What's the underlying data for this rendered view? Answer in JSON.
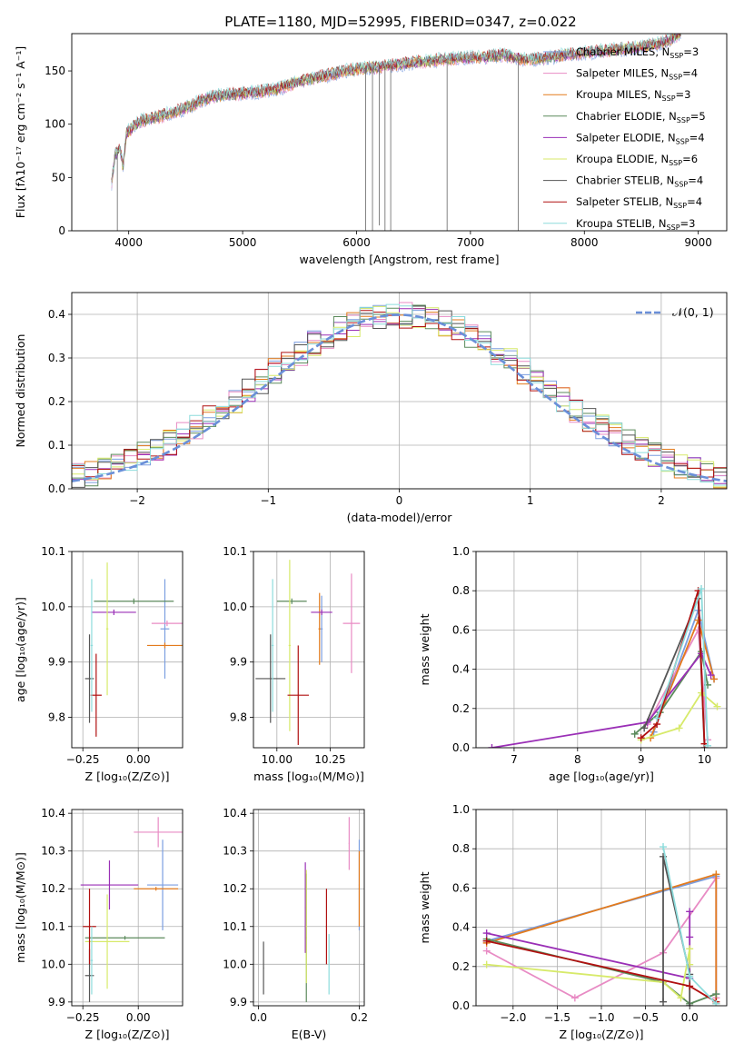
{
  "title": "PLATE=1180, MJD=52995, FIBERID=0347, z=0.022",
  "colors": {
    "Chabrier MILES": "#7b9ee0",
    "Salpeter MILES": "#e88bc4",
    "Kroupa MILES": "#e37b1d",
    "Chabrier ELODIE": "#5b8a5b",
    "Salpeter ELODIE": "#9a2fb6",
    "Kroupa ELODIE": "#d7ea6a",
    "Chabrier STELIB": "#555555",
    "Salpeter STELIB": "#b01010",
    "Kroupa STELIB": "#8ddcdc"
  },
  "chart_data": [
    {
      "id": "spectrum",
      "type": "line",
      "xlabel": "wavelength [Angstrom, rest frame]",
      "ylabel": "Flux [fλ10⁻¹⁷ erg cm⁻² s⁻¹ A⁻¹]",
      "xlim": [
        3500,
        9250
      ],
      "ylim": [
        0,
        185
      ],
      "xticks": [
        "4000",
        "5000",
        "6000",
        "7000",
        "8000",
        "9000"
      ],
      "yticks": [
        "0",
        "50",
        "100",
        "150"
      ],
      "grid": false,
      "legend_position": "right",
      "legend": [
        {
          "model": "Chabrier MILES",
          "label": "Chabrier MILES, N",
          "sub": "SSP",
          "n": "=3"
        },
        {
          "model": "Salpeter MILES",
          "label": "Salpeter MILES, N",
          "sub": "SSP",
          "n": "=4"
        },
        {
          "model": "Kroupa MILES",
          "label": "Kroupa MILES, N",
          "sub": "SSP",
          "n": "=3"
        },
        {
          "model": "Chabrier ELODIE",
          "label": "Chabrier ELODIE, N",
          "sub": "SSP",
          "n": "=5"
        },
        {
          "model": "Salpeter ELODIE",
          "label": "Salpeter ELODIE, N",
          "sub": "SSP",
          "n": "=4"
        },
        {
          "model": "Kroupa ELODIE",
          "label": "Kroupa ELODIE, N",
          "sub": "SSP",
          "n": "=6"
        },
        {
          "model": "Chabrier STELIB",
          "label": "Chabrier STELIB, N",
          "sub": "SSP",
          "n": "=4"
        },
        {
          "model": "Salpeter STELIB",
          "label": "Salpeter STELIB, N",
          "sub": "SSP",
          "n": "=4"
        },
        {
          "model": "Kroupa STELIB",
          "label": "Kroupa STELIB, N",
          "sub": "SSP",
          "n": "=3"
        }
      ],
      "continuum": [
        [
          3850,
          45
        ],
        [
          3880,
          70
        ],
        [
          3920,
          78
        ],
        [
          3950,
          60
        ],
        [
          3980,
          92
        ],
        [
          4100,
          103
        ],
        [
          4300,
          108
        ],
        [
          4500,
          115
        ],
        [
          4700,
          125
        ],
        [
          4900,
          128
        ],
        [
          5100,
          130
        ],
        [
          5300,
          133
        ],
        [
          5500,
          140
        ],
        [
          5700,
          145
        ],
        [
          5900,
          150
        ],
        [
          6100,
          153
        ],
        [
          6300,
          155
        ],
        [
          6500,
          158
        ],
        [
          6700,
          160
        ],
        [
          6900,
          162
        ],
        [
          7100,
          163
        ],
        [
          7300,
          165
        ],
        [
          7500,
          160
        ],
        [
          7700,
          163
        ],
        [
          7900,
          166
        ],
        [
          8100,
          168
        ],
        [
          8300,
          170
        ],
        [
          8500,
          172
        ],
        [
          8700,
          177
        ],
        [
          8850,
          185
        ]
      ],
      "drop_lines": [
        [
          3900,
          0
        ],
        [
          6080,
          0
        ],
        [
          6140,
          0
        ],
        [
          6200,
          5
        ],
        [
          6250,
          0
        ],
        [
          6300,
          0
        ],
        [
          6795,
          0
        ],
        [
          7420,
          0
        ]
      ]
    },
    {
      "id": "residuals",
      "type": "histogram",
      "xlabel": "(data-model)/error",
      "ylabel": "Normed distribution",
      "xlim": [
        -2.5,
        2.5
      ],
      "ylim": [
        0,
        0.45
      ],
      "xticks": [
        "−2",
        "−1",
        "0",
        "1",
        "2"
      ],
      "yticks": [
        "0.0",
        "0.1",
        "0.2",
        "0.3",
        "0.4"
      ],
      "grid": true,
      "legend": {
        "label": "𝒩(0, 1)",
        "position": "top-right"
      },
      "bin_width": 0.1
    },
    {
      "id": "age-vs-Z",
      "type": "errorbar",
      "xlabel": "Z [log₁₀(Z/Z⊙)]",
      "ylabel": "age  [log₁₀(age/yr)]",
      "xlim": [
        -0.3,
        0.2
      ],
      "ylim": [
        9.745,
        10.1
      ],
      "xticks": [
        "−0.25",
        "0.00"
      ],
      "xtick_values": [
        -0.25,
        0.0
      ],
      "yticks": [
        "9.8",
        "9.9",
        "10.0",
        "10.1"
      ],
      "ytick_values": [
        9.8,
        9.9,
        10.0,
        10.1
      ],
      "grid": true,
      "points": [
        {
          "model": "Chabrier MILES",
          "x": 0.12,
          "y": 9.96,
          "xerr": 0.02,
          "yerr": 0.09
        },
        {
          "model": "Salpeter MILES",
          "x": 0.13,
          "y": 9.97,
          "xerr": 0.07,
          "yerr": 0.005
        },
        {
          "model": "Kroupa MILES",
          "x": 0.12,
          "y": 9.93,
          "xerr": 0.08,
          "yerr": 0.005
        },
        {
          "model": "Chabrier ELODIE",
          "x": -0.02,
          "y": 10.01,
          "xerr": 0.18,
          "yerr": 0.005
        },
        {
          "model": "Salpeter ELODIE",
          "x": -0.11,
          "y": 9.99,
          "xerr": 0.1,
          "yerr": 0.005
        },
        {
          "model": "Kroupa ELODIE",
          "x": -0.14,
          "y": 9.96,
          "xerr": 0.005,
          "yerr": 0.12
        },
        {
          "model": "Chabrier STELIB",
          "x": -0.22,
          "y": 9.87,
          "xerr": 0.02,
          "yerr": 0.08
        },
        {
          "model": "Salpeter STELIB",
          "x": -0.19,
          "y": 9.84,
          "xerr": 0.025,
          "yerr": 0.075
        },
        {
          "model": "Kroupa STELIB",
          "x": -0.21,
          "y": 9.93,
          "xerr": 0.005,
          "yerr": 0.12
        }
      ]
    },
    {
      "id": "age-vs-mass",
      "type": "errorbar",
      "xlabel": "mass [log₁₀(M/M⊙)]",
      "ylabel": "",
      "xlim": [
        9.89,
        10.41
      ],
      "ylim": [
        9.745,
        10.1
      ],
      "xticks": [
        "10.00",
        "10.25"
      ],
      "xtick_values": [
        10.0,
        10.25
      ],
      "yticks": [
        "9.8",
        "9.9",
        "10.0",
        "10.1"
      ],
      "ytick_values": [
        9.8,
        9.9,
        10.0,
        10.1
      ],
      "grid": true,
      "points": [
        {
          "model": "Chabrier MILES",
          "x": 10.21,
          "y": 9.96,
          "xerr": 0.005,
          "yerr": 0.06
        },
        {
          "model": "Salpeter MILES",
          "x": 10.35,
          "y": 9.97,
          "xerr": 0.04,
          "yerr": 0.09
        },
        {
          "model": "Kroupa MILES",
          "x": 10.2,
          "y": 9.96,
          "xerr": 0.005,
          "yerr": 0.065
        },
        {
          "model": "Chabrier ELODIE",
          "x": 10.07,
          "y": 10.01,
          "xerr": 0.07,
          "yerr": 0.005
        },
        {
          "model": "Salpeter ELODIE",
          "x": 10.21,
          "y": 9.99,
          "xerr": 0.05,
          "yerr": 0.005
        },
        {
          "model": "Kroupa ELODIE",
          "x": 10.06,
          "y": 9.93,
          "xerr": 0.005,
          "yerr": 0.155
        },
        {
          "model": "Chabrier STELIB",
          "x": 9.97,
          "y": 9.87,
          "xerr": 0.07,
          "yerr": 0.08
        },
        {
          "model": "Salpeter STELIB",
          "x": 10.1,
          "y": 9.84,
          "xerr": 0.05,
          "yerr": 0.09
        },
        {
          "model": "Kroupa STELIB",
          "x": 9.98,
          "y": 9.93,
          "xerr": 0.005,
          "yerr": 0.12
        }
      ]
    },
    {
      "id": "weight-vs-age",
      "type": "line",
      "xlabel": "age  [log₁₀(age/yr)]",
      "ylabel": "mass weight",
      "xlim": [
        6.4,
        10.35
      ],
      "ylim": [
        0,
        1
      ],
      "xticks": [
        "7",
        "8",
        "9",
        "10"
      ],
      "xtick_values": [
        7,
        8,
        9,
        10
      ],
      "yticks": [
        "0.0",
        "0.2",
        "0.4",
        "0.6",
        "0.8",
        "1.0"
      ],
      "ytick_values": [
        0,
        0.2,
        0.4,
        0.6,
        0.8,
        1.0
      ],
      "grid": true,
      "series": [
        {
          "model": "Chabrier MILES",
          "x": [
            9.2,
            9.9,
            10.15
          ],
          "y": [
            0.08,
            0.7,
            0.35
          ]
        },
        {
          "model": "Salpeter MILES",
          "x": [
            9.1,
            9.9,
            10.05
          ],
          "y": [
            0.12,
            0.6,
            0.04
          ]
        },
        {
          "model": "Kroupa MILES",
          "x": [
            9.15,
            9.9,
            10.15
          ],
          "y": [
            0.05,
            0.65,
            0.35
          ]
        },
        {
          "model": "Chabrier ELODIE",
          "x": [
            8.9,
            9.3,
            9.95,
            10.05
          ],
          "y": [
            0.07,
            0.18,
            0.49,
            0.32
          ]
        },
        {
          "model": "Salpeter ELODIE",
          "x": [
            6.65,
            9.1,
            9.95,
            10.1
          ],
          "y": [
            0.0,
            0.13,
            0.48,
            0.37
          ]
        },
        {
          "model": "Kroupa ELODIE",
          "x": [
            9.0,
            9.6,
            9.95,
            10.2
          ],
          "y": [
            0.04,
            0.1,
            0.28,
            0.21
          ]
        },
        {
          "model": "Chabrier STELIB",
          "x": [
            9.05,
            9.9,
            10.0
          ],
          "y": [
            0.1,
            0.76,
            0.0
          ]
        },
        {
          "model": "Salpeter STELIB",
          "x": [
            9.0,
            9.25,
            9.9,
            10.0
          ],
          "y": [
            0.05,
            0.12,
            0.8,
            0.02
          ]
        },
        {
          "model": "Kroupa STELIB",
          "x": [
            9.25,
            9.95,
            10.05
          ],
          "y": [
            0.15,
            0.81,
            0.01
          ]
        }
      ]
    },
    {
      "id": "mass-vs-Z",
      "type": "errorbar",
      "xlabel": "Z [log₁₀(Z/Z⊙)]",
      "ylabel": "mass [log₁₀(M/M⊙)]",
      "xlim": [
        -0.3,
        0.2
      ],
      "ylim": [
        9.89,
        10.41
      ],
      "xticks": [
        "−0.25",
        "0.00"
      ],
      "xtick_values": [
        -0.25,
        0.0
      ],
      "yticks": [
        "9.9",
        "10.0",
        "10.1",
        "10.2",
        "10.3",
        "10.4"
      ],
      "ytick_values": [
        9.9,
        10.0,
        10.1,
        10.2,
        10.3,
        10.4
      ],
      "grid": true,
      "points": [
        {
          "model": "Chabrier MILES",
          "x": 0.11,
          "y": 10.21,
          "xerr": 0.07,
          "yerr": 0.12
        },
        {
          "model": "Salpeter MILES",
          "x": 0.09,
          "y": 10.35,
          "xerr": 0.11,
          "yerr": 0.04
        },
        {
          "model": "Kroupa MILES",
          "x": 0.08,
          "y": 10.2,
          "xerr": 0.1,
          "yerr": 0.005
        },
        {
          "model": "Chabrier ELODIE",
          "x": -0.06,
          "y": 10.07,
          "xerr": 0.18,
          "yerr": 0.005
        },
        {
          "model": "Salpeter ELODIE",
          "x": -0.13,
          "y": 10.21,
          "xerr": 0.13,
          "yerr": 0.065
        },
        {
          "model": "Kroupa ELODIE",
          "x": -0.14,
          "y": 10.06,
          "xerr": 0.1,
          "yerr": 0.125
        },
        {
          "model": "Chabrier STELIB",
          "x": -0.22,
          "y": 9.97,
          "xerr": 0.02,
          "yerr": 0.07
        },
        {
          "model": "Salpeter STELIB",
          "x": -0.22,
          "y": 10.1,
          "xerr": 0.03,
          "yerr": 0.1
        },
        {
          "model": "Kroupa STELIB",
          "x": -0.21,
          "y": 10.01,
          "xerr": 0.005,
          "yerr": 0.09
        }
      ]
    },
    {
      "id": "mass-vs-ebv",
      "type": "errorbar",
      "xlabel": "E(B-V)",
      "ylabel": "",
      "xlim": [
        -0.01,
        0.21
      ],
      "ylim": [
        9.89,
        10.41
      ],
      "xticks": [
        "0.0",
        "0.2"
      ],
      "xtick_values": [
        0.0,
        0.2
      ],
      "yticks": [
        "9.9",
        "10.0",
        "10.1",
        "10.2",
        "10.3",
        "10.4"
      ],
      "ytick_values": [
        9.9,
        10.0,
        10.1,
        10.2,
        10.3,
        10.4
      ],
      "grid": true,
      "points": [
        {
          "model": "Chabrier MILES",
          "x": 0.2,
          "y": 10.21,
          "xerr": 0.001,
          "yerr": 0.12
        },
        {
          "model": "Salpeter MILES",
          "x": 0.18,
          "y": 10.32,
          "xerr": 0.001,
          "yerr": 0.07
        },
        {
          "model": "Kroupa MILES",
          "x": 0.2,
          "y": 10.2,
          "xerr": 0.001,
          "yerr": 0.1
        },
        {
          "model": "Chabrier ELODIE",
          "x": 0.095,
          "y": 10.07,
          "xerr": 0.001,
          "yerr": 0.17
        },
        {
          "model": "Salpeter ELODIE",
          "x": 0.093,
          "y": 10.15,
          "xerr": 0.001,
          "yerr": 0.12
        },
        {
          "model": "Kroupa ELODIE",
          "x": 0.095,
          "y": 10.1,
          "xerr": 0.001,
          "yerr": 0.15
        },
        {
          "model": "Chabrier STELIB",
          "x": 0.01,
          "y": 9.99,
          "xerr": 0.001,
          "yerr": 0.07
        },
        {
          "model": "Salpeter STELIB",
          "x": 0.135,
          "y": 10.1,
          "xerr": 0.001,
          "yerr": 0.1
        },
        {
          "model": "Kroupa STELIB",
          "x": 0.14,
          "y": 10.0,
          "xerr": 0.001,
          "yerr": 0.08
        }
      ]
    },
    {
      "id": "weight-vs-Z",
      "type": "line",
      "xlabel": "Z [log₁₀(Z/Z⊙)]",
      "ylabel": "mass weight",
      "xlim": [
        -2.42,
        0.42
      ],
      "ylim": [
        0,
        1
      ],
      "xticks": [
        "−2.0",
        "−1.5",
        "−1.0",
        "−0.5",
        "0.0"
      ],
      "xtick_values": [
        -2.0,
        -1.5,
        -1.0,
        -0.5,
        0.0
      ],
      "yticks": [
        "0.0",
        "0.2",
        "0.4",
        "0.6",
        "0.8",
        "1.0"
      ],
      "ytick_values": [
        0,
        0.2,
        0.4,
        0.6,
        0.8,
        1.0
      ],
      "grid": true,
      "series": [
        {
          "model": "Chabrier MILES",
          "x": [
            -2.3,
            0.3,
            0.3
          ],
          "y": [
            0.33,
            0.66,
            0.06
          ]
        },
        {
          "model": "Salpeter MILES",
          "x": [
            -2.3,
            -1.3,
            -0.3,
            0.3,
            0.3
          ],
          "y": [
            0.28,
            0.04,
            0.27,
            0.65,
            0.04
          ]
        },
        {
          "model": "Kroupa MILES",
          "x": [
            -2.3,
            0.3,
            0.3
          ],
          "y": [
            0.32,
            0.67,
            0.01
          ]
        },
        {
          "model": "Chabrier ELODIE",
          "x": [
            -2.3,
            -0.3,
            0.0,
            0.3
          ],
          "y": [
            0.34,
            0.12,
            0.01,
            0.06
          ]
        },
        {
          "model": "Salpeter ELODIE",
          "x": [
            -2.3,
            0.0,
            0.0,
            0.0
          ],
          "y": [
            0.37,
            0.14,
            0.48,
            0.35
          ]
        },
        {
          "model": "Kroupa ELODIE",
          "x": [
            -2.3,
            -0.3,
            -0.1,
            0.0,
            0.0
          ],
          "y": [
            0.21,
            0.12,
            0.04,
            0.29,
            0.21
          ]
        },
        {
          "model": "Chabrier STELIB",
          "x": [
            -0.3,
            -0.3,
            0.0,
            0.0
          ],
          "y": [
            0.02,
            0.76,
            0.16,
            0.0
          ]
        },
        {
          "model": "Salpeter STELIB",
          "x": [
            -2.3,
            0.0,
            0.3
          ],
          "y": [
            0.33,
            0.1,
            0.02
          ]
        },
        {
          "model": "Kroupa STELIB",
          "x": [
            -0.3,
            0.0,
            0.3
          ],
          "y": [
            0.81,
            0.15,
            0.01
          ]
        }
      ]
    }
  ]
}
